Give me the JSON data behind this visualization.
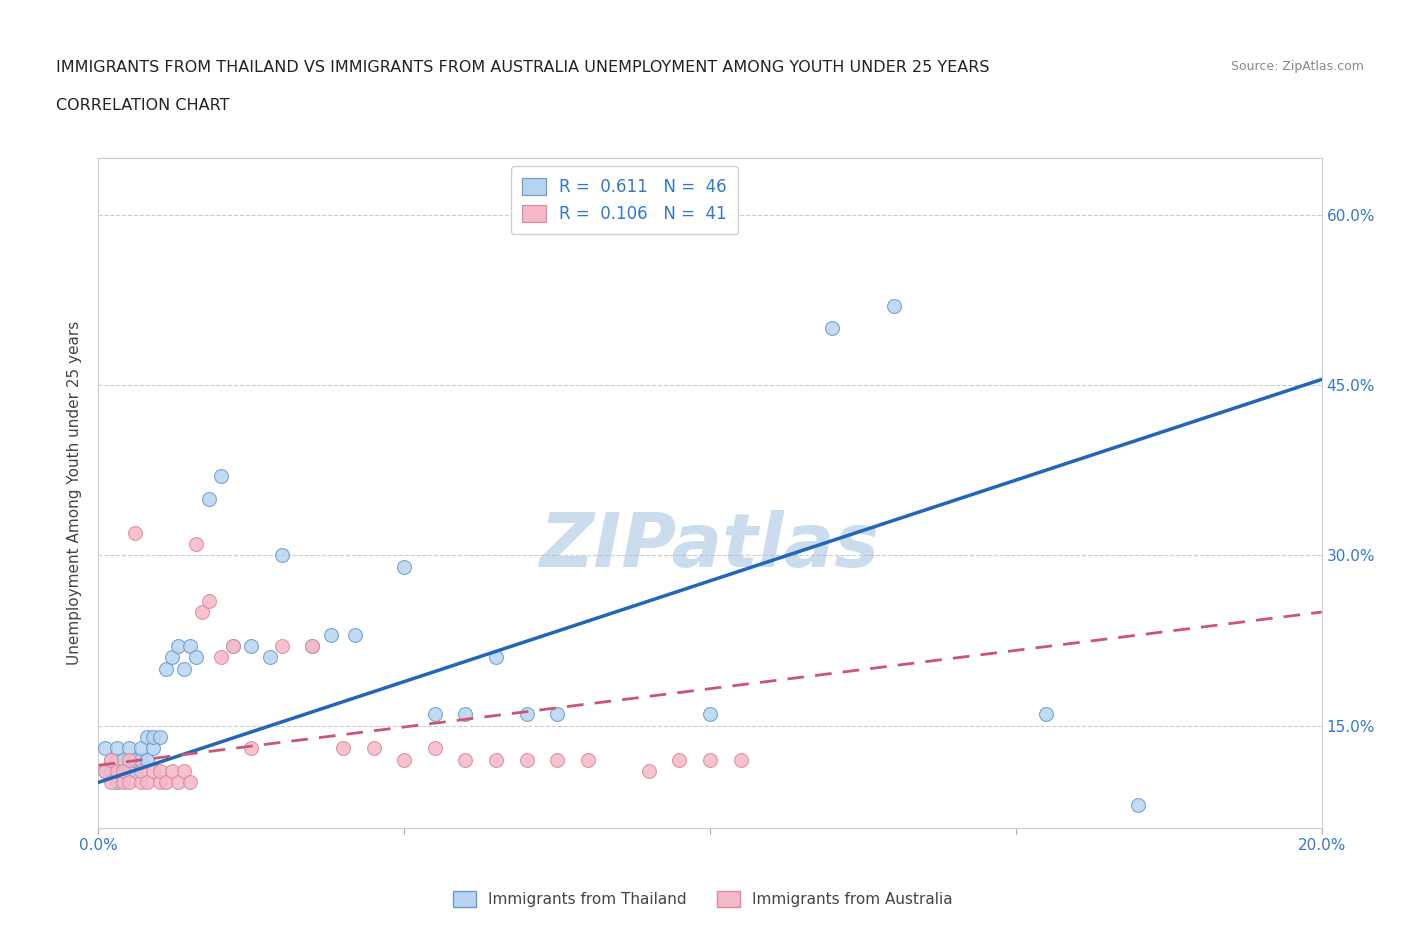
{
  "title_line1": "IMMIGRANTS FROM THAILAND VS IMMIGRANTS FROM AUSTRALIA UNEMPLOYMENT AMONG YOUTH UNDER 25 YEARS",
  "title_line2": "CORRELATION CHART",
  "source_text": "Source: ZipAtlas.com",
  "ylabel": "Unemployment Among Youth under 25 years",
  "xlim": [
    0.0,
    0.2
  ],
  "ylim": [
    0.06,
    0.65
  ],
  "xtick_positions": [
    0.0,
    0.05,
    0.1,
    0.15,
    0.2
  ],
  "xticklabels": [
    "0.0%",
    "",
    "",
    "",
    "20.0%"
  ],
  "right_yticks": [
    0.15,
    0.3,
    0.45,
    0.6
  ],
  "right_yticklabels": [
    "15.0%",
    "30.0%",
    "45.0%",
    "60.0%"
  ],
  "R_thailand": 0.611,
  "N_thailand": 46,
  "R_australia": 0.106,
  "N_australia": 41,
  "color_thailand_fill": "#b8d4f0",
  "color_australia_fill": "#f5b8c8",
  "color_thailand_edge": "#6699cc",
  "color_australia_edge": "#dd8899",
  "color_blue_text": "#3377cc",
  "color_line_thailand": "#2266bb",
  "color_line_australia": "#cc5577",
  "watermark": "ZIPatlas",
  "watermark_color": "#99bbdd",
  "thailand_x": [
    0.001,
    0.001,
    0.002,
    0.002,
    0.003,
    0.003,
    0.003,
    0.004,
    0.004,
    0.005,
    0.005,
    0.006,
    0.006,
    0.007,
    0.007,
    0.008,
    0.008,
    0.009,
    0.009,
    0.01,
    0.011,
    0.012,
    0.013,
    0.014,
    0.015,
    0.016,
    0.018,
    0.02,
    0.022,
    0.025,
    0.028,
    0.03,
    0.035,
    0.038,
    0.042,
    0.05,
    0.055,
    0.06,
    0.065,
    0.07,
    0.075,
    0.1,
    0.12,
    0.13,
    0.155,
    0.17
  ],
  "thailand_y": [
    0.11,
    0.13,
    0.11,
    0.12,
    0.1,
    0.12,
    0.13,
    0.11,
    0.12,
    0.11,
    0.13,
    0.11,
    0.12,
    0.12,
    0.13,
    0.12,
    0.14,
    0.13,
    0.14,
    0.14,
    0.2,
    0.21,
    0.22,
    0.2,
    0.22,
    0.21,
    0.35,
    0.37,
    0.22,
    0.22,
    0.21,
    0.3,
    0.22,
    0.23,
    0.23,
    0.29,
    0.16,
    0.16,
    0.21,
    0.16,
    0.16,
    0.16,
    0.5,
    0.52,
    0.16,
    0.08
  ],
  "australia_x": [
    0.001,
    0.002,
    0.002,
    0.003,
    0.004,
    0.004,
    0.005,
    0.005,
    0.006,
    0.007,
    0.007,
    0.008,
    0.009,
    0.01,
    0.01,
    0.011,
    0.012,
    0.013,
    0.014,
    0.015,
    0.016,
    0.017,
    0.018,
    0.02,
    0.022,
    0.025,
    0.03,
    0.035,
    0.04,
    0.045,
    0.05,
    0.055,
    0.06,
    0.065,
    0.07,
    0.075,
    0.08,
    0.09,
    0.095,
    0.1,
    0.105
  ],
  "australia_y": [
    0.11,
    0.1,
    0.12,
    0.11,
    0.1,
    0.11,
    0.1,
    0.12,
    0.32,
    0.1,
    0.11,
    0.1,
    0.11,
    0.1,
    0.11,
    0.1,
    0.11,
    0.1,
    0.11,
    0.1,
    0.31,
    0.25,
    0.26,
    0.21,
    0.22,
    0.13,
    0.22,
    0.22,
    0.13,
    0.13,
    0.12,
    0.13,
    0.12,
    0.12,
    0.12,
    0.12,
    0.12,
    0.11,
    0.12,
    0.12,
    0.12
  ],
  "legend_label_thailand": "Immigrants from Thailand",
  "legend_label_australia": "Immigrants from Australia",
  "background_color": "#ffffff",
  "grid_color": "#cccccc",
  "trendline_th_x0": 0.0,
  "trendline_th_y0": 0.1,
  "trendline_th_x1": 0.2,
  "trendline_th_y1": 0.455,
  "trendline_au_x0": 0.0,
  "trendline_au_y0": 0.115,
  "trendline_au_x1": 0.2,
  "trendline_au_y1": 0.25
}
